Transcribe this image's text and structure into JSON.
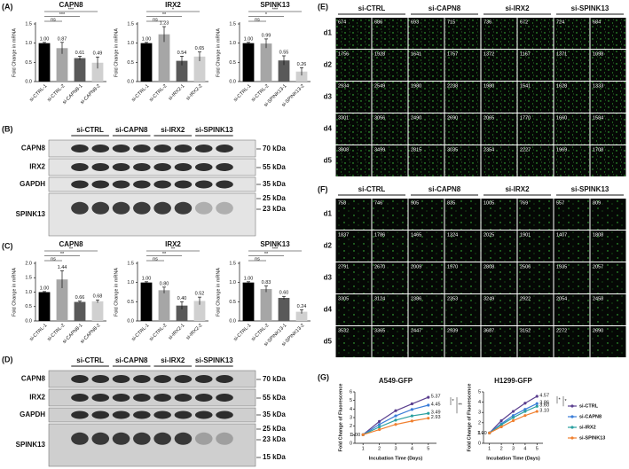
{
  "panel_labels": [
    "(A)",
    "(B)",
    "(C)",
    "(D)",
    "(E)",
    "(F)",
    "(G)"
  ],
  "chart_data": [
    {
      "type": "bar",
      "title": "CAPN8",
      "y_label": "Fold Change in mRNA",
      "categories": [
        "si-CTRL-1",
        "si-CTRL-2",
        "si-CAPN8-1",
        "si-CAPN8-2"
      ],
      "values": [
        1.0,
        0.87,
        0.61,
        0.49
      ],
      "value_labels": [
        "1.00",
        "0.87",
        "0.61",
        "0.49"
      ],
      "errors": [
        0.02,
        0.15,
        0.05,
        0.15
      ],
      "colors": [
        "#000000",
        "#a6a6a6",
        "#595959",
        "#d0d0d0"
      ],
      "ylim": [
        0,
        1.5
      ],
      "yticks": [
        {
          "value": 0,
          "label": "0.0"
        },
        {
          "value": 0.5,
          "label": "0.5"
        },
        {
          "value": 1,
          "label": "1.0"
        },
        {
          "value": 1.5,
          "label": "1.5"
        }
      ],
      "annotations": [
        "ns",
        "***",
        "***"
      ]
    },
    {
      "type": "bar",
      "title": "IRX2",
      "y_label": "Fold Change in mRNA",
      "categories": [
        "si-CTRL-1",
        "si-CTRL-2",
        "si-IRX2-1",
        "si-IRX2-2"
      ],
      "values": [
        1.0,
        1.23,
        0.54,
        0.65
      ],
      "value_labels": [
        "1.00",
        "1.23",
        "0.54",
        "0.65"
      ],
      "errors": [
        0.02,
        0.2,
        0.12,
        0.12
      ],
      "colors": [
        "#000000",
        "#a6a6a6",
        "#595959",
        "#d0d0d0"
      ],
      "ylim": [
        0,
        1.5
      ],
      "yticks": [
        {
          "value": 0,
          "label": "0.0"
        },
        {
          "value": 0.5,
          "label": "0.5"
        },
        {
          "value": 1,
          "label": "1.0"
        },
        {
          "value": 1.5,
          "label": "1.5"
        }
      ],
      "annotations": [
        "ns",
        "**",
        "*"
      ]
    },
    {
      "type": "bar",
      "title": "SPINK13",
      "y_label": "Fold Change in mRNA",
      "categories": [
        "si-CTRL-1",
        "si-CTRL-2",
        "si-SPINK13-1",
        "si-SPINK13-2"
      ],
      "values": [
        1.0,
        0.99,
        0.55,
        0.26
      ],
      "value_labels": [
        "1.00",
        "0.99",
        "0.55",
        "0.26"
      ],
      "errors": [
        0.02,
        0.12,
        0.12,
        0.1
      ],
      "colors": [
        "#000000",
        "#a6a6a6",
        "#595959",
        "#d0d0d0"
      ],
      "ylim": [
        0,
        1.5
      ],
      "yticks": [
        {
          "value": 0,
          "label": "0.0"
        },
        {
          "value": 0.5,
          "label": "0.5"
        },
        {
          "value": 1,
          "label": "1.0"
        },
        {
          "value": 1.5,
          "label": "1.5"
        }
      ],
      "annotations": [
        "ns",
        "*",
        "***"
      ]
    },
    {
      "type": "bar",
      "title": "CAPN8",
      "y_label": "Fold Change in mRNA",
      "categories": [
        "si-CTRL-1",
        "si-CTRL-2",
        "si-CAPN8-1",
        "si-CAPN8-2"
      ],
      "values": [
        1.0,
        1.44,
        0.66,
        0.68
      ],
      "value_labels": [
        "1.00",
        "1.44",
        "0.66",
        "0.68"
      ],
      "errors": [
        0.02,
        0.3,
        0.03,
        0.05
      ],
      "colors": [
        "#000000",
        "#a6a6a6",
        "#595959",
        "#d0d0d0"
      ],
      "ylim": [
        0,
        2
      ],
      "yticks": [
        {
          "value": 0,
          "label": "0.0"
        },
        {
          "value": 0.5,
          "label": "0.5"
        },
        {
          "value": 1,
          "label": "1.0"
        },
        {
          "value": 1.5,
          "label": "1.5"
        },
        {
          "value": 2,
          "label": "2.0"
        }
      ],
      "annotations": [
        "ns",
        "**",
        "**"
      ]
    },
    {
      "type": "bar",
      "title": "IRX2",
      "y_label": "Fold Change in mRNA",
      "categories": [
        "si-CTRL-1",
        "si-CTRL-2",
        "si-IRX2-1",
        "si-IRX2-2"
      ],
      "values": [
        1.0,
        0.8,
        0.4,
        0.52
      ],
      "value_labels": [
        "1.00",
        "0.80",
        "0.40",
        "0.52"
      ],
      "errors": [
        0.02,
        0.08,
        0.1,
        0.1
      ],
      "colors": [
        "#000000",
        "#a6a6a6",
        "#595959",
        "#d0d0d0"
      ],
      "ylim": [
        0,
        1.5
      ],
      "yticks": [
        {
          "value": 0,
          "label": "0.0"
        },
        {
          "value": 0.5,
          "label": "0.5"
        },
        {
          "value": 1,
          "label": "1.0"
        },
        {
          "value": 1.5,
          "label": "1.5"
        }
      ],
      "annotations": [
        "ns",
        "**",
        "**"
      ]
    },
    {
      "type": "bar",
      "title": "SPINK13",
      "y_label": "Fold Change in mRNA",
      "categories": [
        "si-CTRL-1",
        "si-CTRL-2",
        "si-SPINK13-1",
        "si-SPINK13-2"
      ],
      "values": [
        1.0,
        0.83,
        0.6,
        0.24
      ],
      "value_labels": [
        "1.00",
        "0.83",
        "0.60",
        "0.24"
      ],
      "errors": [
        0.02,
        0.08,
        0.04,
        0.05
      ],
      "colors": [
        "#000000",
        "#a6a6a6",
        "#595959",
        "#d0d0d0"
      ],
      "ylim": [
        0,
        1.5
      ],
      "yticks": [
        {
          "value": 0,
          "label": "0.0"
        },
        {
          "value": 0.5,
          "label": "0.5"
        },
        {
          "value": 1,
          "label": "1.0"
        },
        {
          "value": 1.5,
          "label": "1.5"
        }
      ],
      "annotations": [
        "ns",
        "**",
        "***"
      ]
    },
    {
      "type": "line",
      "title": "A549-GFP",
      "x_label": "Incubation Time (Days)",
      "y_label": "Fold Change of Fluorescence",
      "x": [
        1,
        2,
        3,
        4,
        5
      ],
      "xlim": [
        0.5,
        5.5
      ],
      "xticks": [
        1,
        2,
        3,
        4,
        5
      ],
      "ylim": [
        0,
        6
      ],
      "yticks": [
        0,
        1,
        2,
        3,
        4,
        5,
        6
      ],
      "series": [
        {
          "color": "#5b3f8f",
          "values": [
            1.0,
            2.55,
            3.8,
            4.6,
            5.37
          ],
          "value_labels": [
            "1.00",
            null,
            null,
            null,
            "5.37"
          ]
        },
        {
          "color": "#3b7dd8",
          "values": [
            1.0,
            2.2,
            3.2,
            3.95,
            4.45
          ],
          "value_labels": [
            null,
            null,
            null,
            null,
            "4.45"
          ]
        },
        {
          "color": "#2aa0a0",
          "values": [
            1.0,
            1.9,
            2.7,
            3.2,
            3.49
          ],
          "value_labels": [
            null,
            null,
            null,
            null,
            "3.49"
          ]
        },
        {
          "color": "#f08030",
          "values": [
            1.0,
            1.6,
            2.2,
            2.6,
            2.93
          ],
          "value_labels": [
            null,
            null,
            null,
            null,
            "2.93"
          ]
        }
      ],
      "annotations": [
        "*",
        "**"
      ]
    },
    {
      "type": "line",
      "title": "H1299-GFP",
      "x_label": "Incubation Time (Days)",
      "y_label": "Fold Change of Fluorescence",
      "x": [
        1,
        2,
        3,
        4,
        5
      ],
      "xlim": [
        0.5,
        5.5
      ],
      "xticks": [
        1,
        2,
        3,
        4,
        5
      ],
      "ylim": [
        0,
        5
      ],
      "yticks": [
        0,
        1,
        2,
        3,
        4,
        5
      ],
      "series": [
        {
          "name": "si-CTRL",
          "color": "#5b3f8f",
          "values": [
            1.0,
            2.2,
            3.1,
            3.9,
            4.57
          ],
          "value_labels": [
            "1.00",
            null,
            null,
            null,
            "4.57"
          ]
        },
        {
          "name": "si-CAPN8",
          "color": "#3b7dd8",
          "values": [
            1.0,
            1.9,
            2.7,
            3.3,
            3.86
          ],
          "value_labels": [
            null,
            null,
            null,
            null,
            "3.86"
          ]
        },
        {
          "name": "si-IRX2",
          "color": "#2aa0a0",
          "values": [
            1.0,
            1.8,
            2.5,
            3.1,
            3.6
          ],
          "value_labels": [
            null,
            null,
            null,
            null,
            "3.60"
          ]
        },
        {
          "name": "si-SPINK13",
          "color": "#f08030",
          "values": [
            1.0,
            1.6,
            2.2,
            2.7,
            3.1
          ],
          "value_labels": [
            null,
            null,
            null,
            null,
            "3.10"
          ]
        }
      ],
      "annotations": [
        "*",
        "*"
      ]
    }
  ],
  "blots": [
    {
      "group_labels": [
        "si-CTRL",
        "si-CAPN8",
        "si-IRX2",
        "si-SPINK13"
      ],
      "proteins": [
        "CAPN8",
        "IRX2",
        "GAPDH",
        "SPINK13"
      ],
      "markers": [
        "70 kDa",
        "55 kDa",
        "35 kDa",
        "25 kDa",
        "23 kDa"
      ]
    },
    {
      "group_labels": [
        "si-CTRL",
        "si-CAPN8",
        "si-IRX2",
        "si-SPINK13"
      ],
      "proteins": [
        "CAPN8",
        "IRX2",
        "GAPDH",
        "SPINK13"
      ],
      "markers": [
        "70 kDa",
        "55 kDa",
        "35 kDa",
        "25 kDa",
        "23 kDa",
        "15 kDa"
      ]
    }
  ],
  "grids": [
    {
      "columns": [
        "si-CTRL",
        "si-CAPN8",
        "si-IRX2",
        "si-SPINK13"
      ],
      "rows": [
        "d1",
        "d2",
        "d3",
        "d4",
        "d5"
      ],
      "counts": [
        [
          "674",
          "686",
          "693",
          "715",
          "736",
          "672",
          "724",
          "684"
        ],
        [
          "1756",
          "1928",
          "1641",
          "1757",
          "1372",
          "1167",
          "1371",
          "1098"
        ],
        [
          "2934",
          "2549",
          "1980",
          "2238",
          "1980",
          "1541",
          "1628",
          "1333"
        ],
        [
          "3301",
          "3056",
          "2490",
          "2690",
          "2065",
          "1770",
          "1660",
          "1584"
        ],
        [
          "3808",
          "3499",
          "2815",
          "3035",
          "2354",
          "2227",
          "1969",
          "1708"
        ]
      ]
    },
    {
      "columns": [
        "si-CTRL",
        "si-CAPN8",
        "si-IRX2",
        "si-SPINK13"
      ],
      "rows": [
        "d1",
        "d2",
        "d3",
        "d4",
        "d5"
      ],
      "counts": [
        [
          "758",
          "746",
          "905",
          "835",
          "1005",
          "769",
          "557",
          "809"
        ],
        [
          "1837",
          "1786",
          "1465",
          "1324",
          "2025",
          "1901",
          "1407",
          "1808"
        ],
        [
          "2791",
          "2670",
          "2009",
          "1970",
          "2808",
          "2506",
          "1935",
          "2057"
        ],
        [
          "3305",
          "3124",
          "2386",
          "2353",
          "3249",
          "2922",
          "2054",
          "2458"
        ],
        [
          "3532",
          "3365",
          "2447",
          "2939",
          "3687",
          "3152",
          "2272",
          "2690"
        ]
      ]
    }
  ]
}
